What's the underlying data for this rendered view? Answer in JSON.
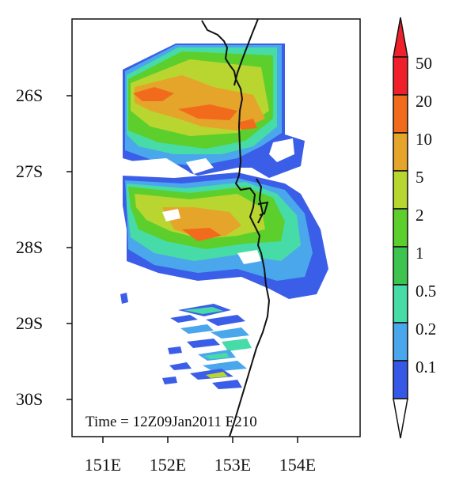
{
  "map": {
    "time_label": "Time = 12Z09Jan2011 E210",
    "lat_ticks": [
      "26S",
      "27S",
      "28S",
      "29S",
      "30S"
    ],
    "lon_ticks": [
      "151E",
      "152E",
      "153E",
      "154E"
    ]
  },
  "colorbar": {
    "labels": [
      "50",
      "20",
      "10",
      "5",
      "2",
      "1",
      "0.5",
      "0.2",
      "0.1"
    ],
    "colors": [
      "#f0202a",
      "#f26b1d",
      "#e5a52a",
      "#b9d630",
      "#5ccf2c",
      "#3cc44e",
      "#47dba8",
      "#4aa7ec",
      "#3558e6"
    ]
  },
  "field_colors": {
    "blue": "#3b5ee8",
    "light_blue": "#4aa7ec",
    "cyan": "#47dba8",
    "green": "#5ccf2c",
    "yellow_green": "#b9d630",
    "orange": "#e5a52a",
    "dark_orange": "#f26b1d"
  }
}
